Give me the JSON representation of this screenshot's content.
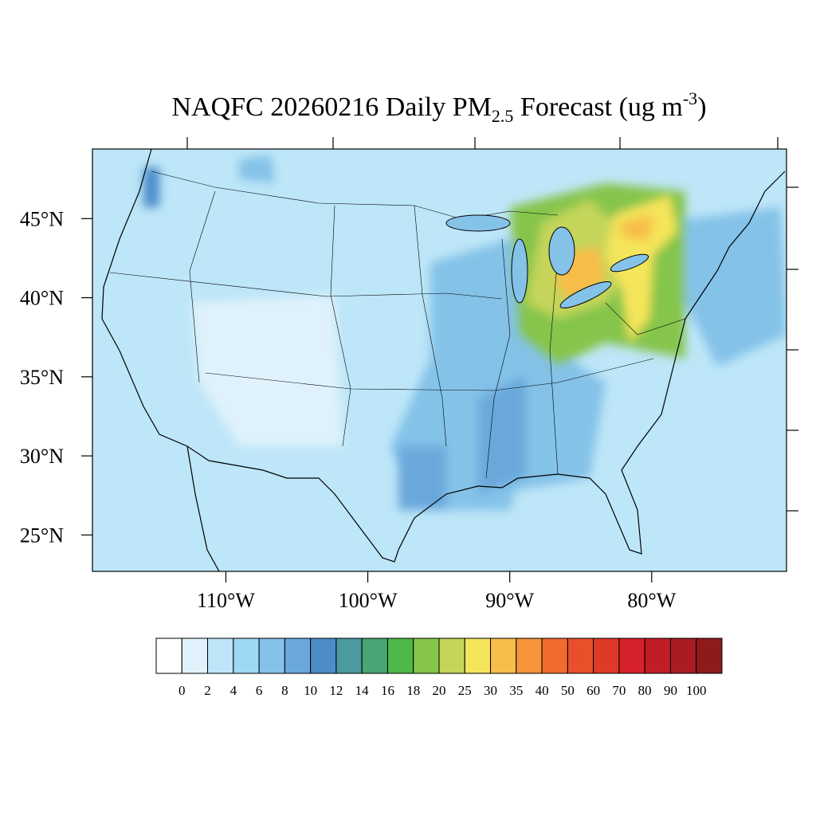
{
  "title": {
    "main": "NAQFC 20260216 Daily PM",
    "subscript": "2.5",
    "rest": " Forecast (ug m",
    "superscript": "-3",
    "end": ")"
  },
  "map": {
    "xlim": [
      -119.4,
      -70.5
    ],
    "ylim": [
      22.7,
      49.4
    ],
    "xticks": [
      {
        "value": -110,
        "label": "110°W"
      },
      {
        "value": -100,
        "label": "100°W"
      },
      {
        "value": -90,
        "label": "90°W"
      },
      {
        "value": -80,
        "label": "80°W"
      }
    ],
    "yticks": [
      {
        "value": 45,
        "label": "45°N"
      },
      {
        "value": 40,
        "label": "40°N"
      },
      {
        "value": 35,
        "label": "35°N"
      },
      {
        "value": 30,
        "label": "30°N"
      },
      {
        "value": 25,
        "label": "25°N"
      }
    ]
  },
  "colorbar": {
    "levels": [
      0,
      2,
      4,
      6,
      8,
      10,
      12,
      14,
      16,
      18,
      20,
      25,
      30,
      35,
      40,
      50,
      60,
      70,
      80,
      90,
      100
    ],
    "colors": [
      "#ffffff",
      "#dff2fb",
      "#bde6f8",
      "#9ed8f5",
      "#84c2e8",
      "#6aa8dc",
      "#4b8cc9",
      "#4a9aa0",
      "#48a574",
      "#4cb848",
      "#85c54b",
      "#c4d55a",
      "#f5e55a",
      "#f8bc4a",
      "#f5943a",
      "#f26a2e",
      "#e8502c",
      "#df3a27",
      "#d6202a",
      "#c01d26",
      "#a81c22",
      "#8f1a1c"
    ]
  }
}
